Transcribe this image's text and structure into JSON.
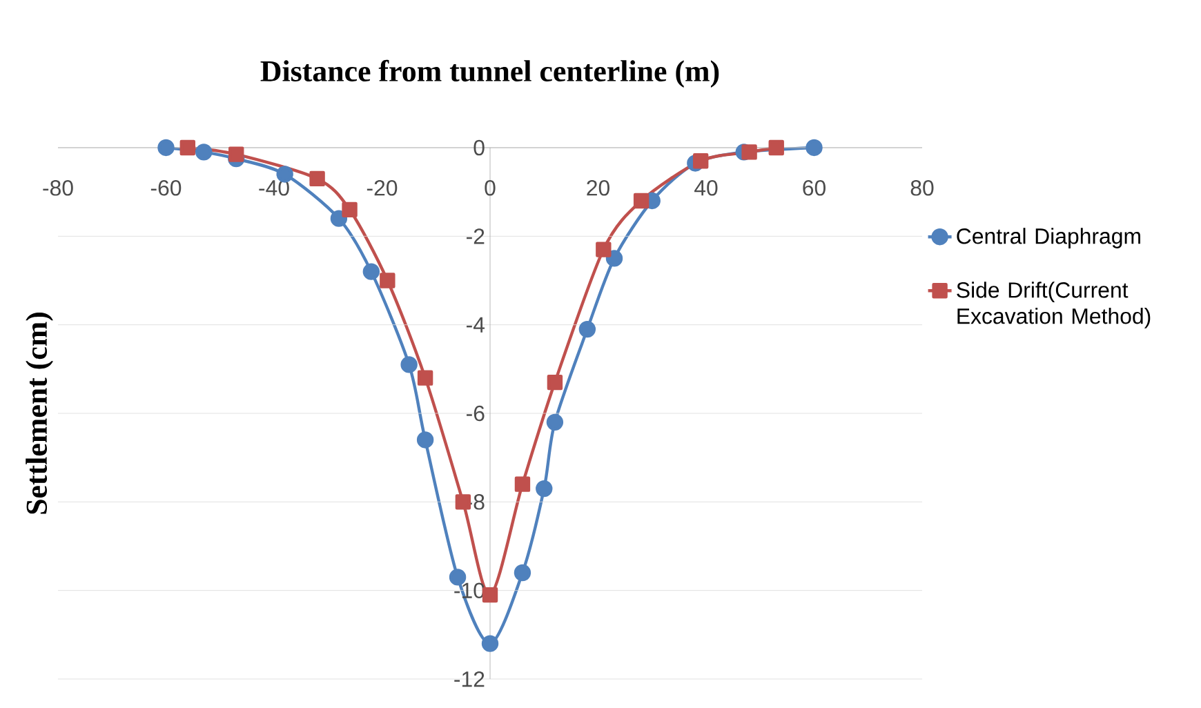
{
  "chart_data": {
    "type": "line",
    "xlabel": "Distance from tunnel centerline (m)",
    "ylabel": "Settlement (cm)",
    "xlim": [
      -80,
      80
    ],
    "xticks": [
      -80,
      -60,
      -40,
      -20,
      0,
      20,
      40,
      60,
      80
    ],
    "ylim": [
      -12,
      0
    ],
    "yticks": [
      -12,
      -10,
      -8,
      -6,
      -4,
      -2,
      0
    ],
    "grid": "y",
    "legend": "right",
    "line_style": "solid",
    "series": [
      {
        "name": "Central Diaphragm",
        "color": "#4f81bd",
        "marker": "circle",
        "x": [
          -60,
          -53,
          -47,
          -38,
          -28,
          -22,
          -15,
          -12,
          -6,
          0,
          6,
          10,
          12,
          18,
          23,
          30,
          38,
          47,
          60
        ],
        "values": [
          0,
          -0.1,
          -0.25,
          -0.6,
          -1.6,
          -2.8,
          -4.9,
          -6.6,
          -9.7,
          -11.2,
          -9.6,
          -7.7,
          -6.2,
          -4.1,
          -2.5,
          -1.2,
          -0.35,
          -0.1,
          0
        ]
      },
      {
        "name": "Side Drift(Current Excavation Method)",
        "color": "#c0504d",
        "marker": "square",
        "x": [
          -56,
          -47,
          -32,
          -26,
          -19,
          -12,
          -5,
          0,
          6,
          12,
          21,
          28,
          39,
          48,
          53
        ],
        "values": [
          0,
          -0.15,
          -0.7,
          -1.4,
          -3.0,
          -5.2,
          -8.0,
          -10.1,
          -7.6,
          -5.3,
          -2.3,
          -1.2,
          -0.3,
          -0.1,
          0
        ]
      }
    ]
  }
}
